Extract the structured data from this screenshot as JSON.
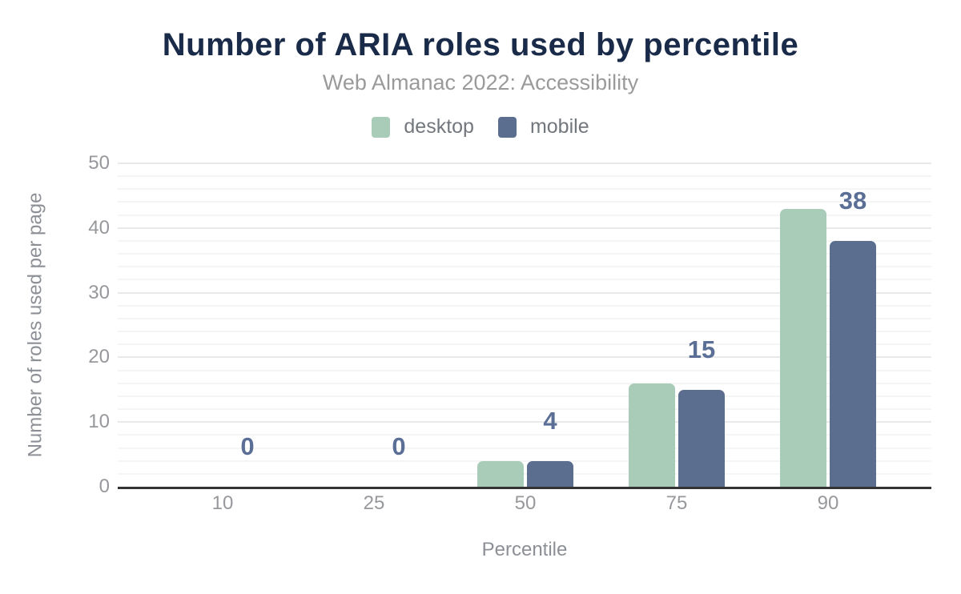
{
  "chart_data": {
    "type": "bar",
    "title": "Number of ARIA roles used by percentile",
    "subtitle": "Web Almanac 2022: Accessibility",
    "xlabel": "Percentile",
    "ylabel": "Number of roles used per page",
    "categories": [
      "10",
      "25",
      "50",
      "75",
      "90"
    ],
    "series": [
      {
        "name": "desktop",
        "color": "#a9ccb9",
        "values": [
          0,
          0,
          4,
          16,
          43
        ]
      },
      {
        "name": "mobile",
        "color": "#5b6e90",
        "values": [
          0,
          0,
          4,
          15,
          38
        ]
      }
    ],
    "data_labels": {
      "series": "mobile",
      "values": [
        "0",
        "0",
        "4",
        "15",
        "38"
      ],
      "color": "#5b6f96"
    },
    "ylim": [
      0,
      50
    ],
    "yticks": [
      "0",
      "10",
      "20",
      "30",
      "40",
      "50"
    ],
    "grid": {
      "minor_step": 2,
      "major_step": 10,
      "orientation": "horizontal"
    },
    "legend_position": "top"
  },
  "style": {
    "title_color": "#1a2b49",
    "subtitle_color": "#9a9a9a",
    "legend_text_color": "#72777d",
    "tick_color": "#96989c",
    "axis_title_color": "#8c9096",
    "data_label_color": "#5b6f96",
    "grid_minor": "#f5f5f5",
    "grid_major": "#e9e9e9",
    "axis_line": "#323436",
    "background": "#ffffff"
  }
}
